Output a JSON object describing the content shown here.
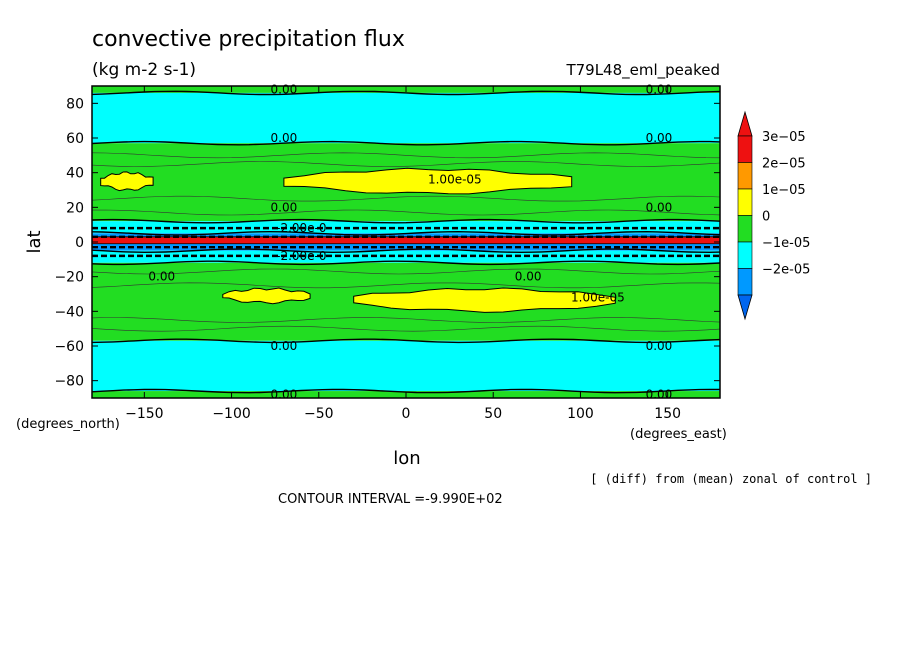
{
  "chart_data": {
    "type": "heatmap",
    "title": "convective precipitation flux",
    "units": "(kg m-2 s-1)",
    "experiment": "T79L48_eml_peaked",
    "xlabel": "lon",
    "ylabel": "lat",
    "x_unit_label": "(degrees_east)",
    "y_unit_label": "(degrees_north)",
    "xlim": [
      -180,
      180
    ],
    "ylim": [
      -90,
      90
    ],
    "x_ticks": [
      -150,
      -100,
      -50,
      0,
      50,
      100,
      150
    ],
    "y_ticks": [
      80,
      60,
      40,
      20,
      0,
      -20,
      -40,
      -60,
      -80
    ],
    "subtitle_note": "[ (diff) from (mean) zonal of control ]",
    "contour_interval": "CONTOUR INTERVAL =-9.990E+02",
    "colorbar": {
      "labels": [
        "3e-05",
        "2e-05",
        "1e-05",
        "0",
        "-1e-05",
        "-2e-05"
      ],
      "colors": [
        "#ee1111",
        "#ff9900",
        "#ffff00",
        "#22dd22",
        "#00ffff",
        "#0099ff"
      ],
      "extend_top_color": "#ee1111",
      "extend_bottom_color": "#0066ee"
    },
    "bands": [
      {
        "lat_min": 86,
        "lat_max": 90,
        "value_class": "0 to 1e-05",
        "color": "#22dd22"
      },
      {
        "lat_min": 57,
        "lat_max": 86,
        "value_class": "-1e-05 to 0",
        "color": "#00ffff"
      },
      {
        "lat_min": 12,
        "lat_max": 57,
        "value_class": "0 to 1e-05",
        "color": "#22dd22"
      },
      {
        "lat_min": 5,
        "lat_max": 12,
        "value_class": "-1e-05 to 0",
        "color": "#00ffff"
      },
      {
        "lat_min": -5,
        "lat_max": 5,
        "value_class": "-2e-05 to -1e-05",
        "color": "#0099ff"
      },
      {
        "lat_min": -12,
        "lat_max": -5,
        "value_class": "-1e-05 to 0",
        "color": "#00ffff"
      },
      {
        "lat_min": -57,
        "lat_max": -12,
        "value_class": "0 to 1e-05",
        "color": "#22dd22"
      },
      {
        "lat_min": -86,
        "lat_max": -57,
        "value_class": "-1e-05 to 0",
        "color": "#00ffff"
      },
      {
        "lat_min": -90,
        "lat_max": -86,
        "value_class": "0 to 1e-05",
        "color": "#22dd22"
      }
    ],
    "highlights": [
      {
        "lon_min": -175,
        "lon_max": -145,
        "lat_min": 30,
        "lat_max": 40,
        "color": "#ffff00"
      },
      {
        "lon_min": -70,
        "lon_max": 95,
        "lat_min": 28,
        "lat_max": 42,
        "color": "#ffff00"
      },
      {
        "lon_min": -105,
        "lon_max": -55,
        "lat_min": -35,
        "lat_max": -27,
        "color": "#ffff00"
      },
      {
        "lon_min": -30,
        "lon_max": 120,
        "lat_min": -40,
        "lat_max": -27,
        "color": "#ffff00"
      },
      {
        "lon_min": -180,
        "lon_max": 180,
        "lat_min": -1,
        "lat_max": 3,
        "color": "#ee1111"
      }
    ],
    "contour_labels": [
      {
        "text": "0.00",
        "lon": -70,
        "lat": 88
      },
      {
        "text": "0.00",
        "lon": 145,
        "lat": 88
      },
      {
        "text": "0.00",
        "lon": -70,
        "lat": 60
      },
      {
        "text": "0.00",
        "lon": 145,
        "lat": 60
      },
      {
        "text": "1.00e-05",
        "lon": 28,
        "lat": 36
      },
      {
        "text": "0.00",
        "lon": -70,
        "lat": 20
      },
      {
        "text": "0.00",
        "lon": 145,
        "lat": 20
      },
      {
        "text": "-2.00e-0",
        "lon": -60,
        "lat": 8
      },
      {
        "text": "-2.00e-0",
        "lon": -60,
        "lat": -8
      },
      {
        "text": "0.00",
        "lon": -140,
        "lat": -20
      },
      {
        "text": "0.00",
        "lon": 70,
        "lat": -20
      },
      {
        "text": "1.00e-05",
        "lon": 110,
        "lat": -32
      },
      {
        "text": "0.00",
        "lon": -70,
        "lat": -60
      },
      {
        "text": "0.00",
        "lon": 145,
        "lat": -60
      },
      {
        "text": "0.00",
        "lon": -70,
        "lat": -88
      },
      {
        "text": "0.00",
        "lon": 145,
        "lat": -88
      }
    ]
  }
}
